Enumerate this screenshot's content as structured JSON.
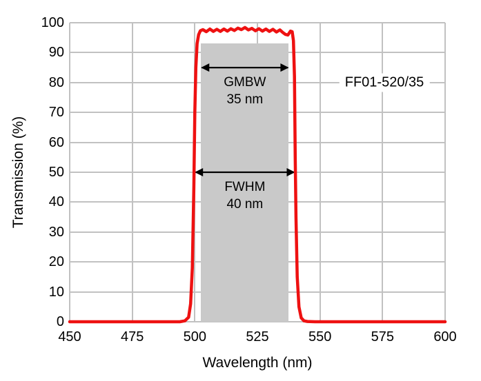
{
  "chart_data": {
    "type": "line",
    "title": "",
    "xlabel": "Wavelength (nm)",
    "ylabel": "Transmission (%)",
    "xlim": [
      450,
      600
    ],
    "ylim": [
      0,
      100
    ],
    "x_ticks": [
      450,
      475,
      500,
      525,
      550,
      575,
      600
    ],
    "y_ticks": [
      0,
      10,
      20,
      30,
      40,
      50,
      60,
      70,
      80,
      90,
      100
    ],
    "grid": "full grid at every x and y tick, light gray",
    "legend": "none",
    "colors": {
      "curve": "#ee1111",
      "band_fill": "#c9c9c9",
      "gridline": "#c1c1c1",
      "text": "#000000",
      "background": "#ffffff"
    },
    "series": [
      {
        "name": "FF01-520/35 transmission spectrum",
        "color": "#ee1111",
        "points": [
          [
            450,
            0
          ],
          [
            460,
            0
          ],
          [
            470,
            0
          ],
          [
            480,
            0
          ],
          [
            490,
            0
          ],
          [
            494,
            0
          ],
          [
            496,
            0.3
          ],
          [
            497.5,
            1.5
          ],
          [
            498.3,
            6
          ],
          [
            499,
            18
          ],
          [
            499.6,
            45
          ],
          [
            500,
            70
          ],
          [
            500.4,
            85
          ],
          [
            500.9,
            93
          ],
          [
            501.5,
            96
          ],
          [
            502.2,
            97.3
          ],
          [
            503.2,
            97.7
          ],
          [
            504.6,
            97.0
          ],
          [
            506,
            97.9
          ],
          [
            507.4,
            97.1
          ],
          [
            508.8,
            97.8
          ],
          [
            510.2,
            97.1
          ],
          [
            511.6,
            97.9
          ],
          [
            513,
            97.2
          ],
          [
            514.4,
            98.0
          ],
          [
            515.8,
            97.4
          ],
          [
            517.2,
            98.2
          ],
          [
            518.6,
            97.7
          ],
          [
            520,
            98.4
          ],
          [
            521.4,
            97.6
          ],
          [
            522.8,
            98.1
          ],
          [
            524.2,
            97.3
          ],
          [
            525.6,
            98.0
          ],
          [
            527,
            97.2
          ],
          [
            528.4,
            97.9
          ],
          [
            529.8,
            97.1
          ],
          [
            531.2,
            97.8
          ],
          [
            532.6,
            96.9
          ],
          [
            534,
            97.6
          ],
          [
            535.2,
            96.7
          ],
          [
            536.2,
            96.1
          ],
          [
            537.2,
            95.9
          ],
          [
            538.2,
            97.2
          ],
          [
            538.9,
            97.0
          ],
          [
            539.4,
            94
          ],
          [
            539.8,
            82
          ],
          [
            540.1,
            55
          ],
          [
            540.4,
            35
          ],
          [
            540.9,
            15
          ],
          [
            541.6,
            5
          ],
          [
            542.5,
            1.3
          ],
          [
            543.6,
            0.3
          ],
          [
            545,
            0.1
          ],
          [
            548,
            0
          ],
          [
            555,
            0
          ],
          [
            565,
            0
          ],
          [
            580,
            0
          ],
          [
            600,
            0
          ]
        ]
      }
    ]
  },
  "annotations": {
    "gmbw": {
      "label": "GMBW",
      "value": "35 nm",
      "from_nm": 502.5,
      "to_nm": 537.5,
      "arrow_percent": 85,
      "band_top_percent": 93,
      "band_color": "#c9c9c9"
    },
    "fwhm": {
      "label": "FWHM",
      "value": "40 nm",
      "from_nm": 500,
      "to_nm": 540,
      "arrow_percent": 50
    },
    "filter_label": {
      "text": "FF01-520/35"
    }
  }
}
